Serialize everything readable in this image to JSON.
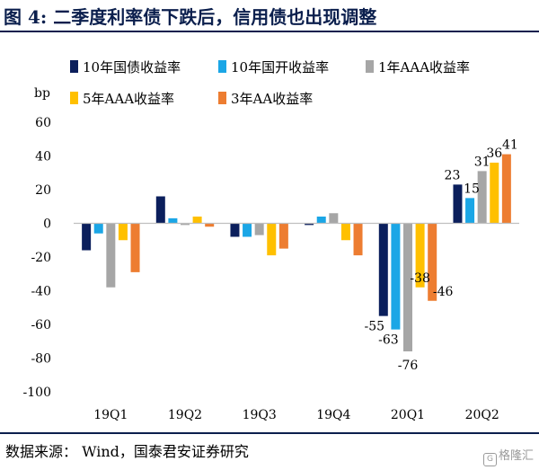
{
  "header": {
    "title": "图 4:  二季度利率债下跌后，信用债也出现调整"
  },
  "footer": {
    "source": "数据来源：  Wind，国泰君安证券研究",
    "watermark": "格隆汇"
  },
  "chart_data": {
    "type": "bar",
    "ylabel": "bp",
    "ylim": [
      -100,
      60
    ],
    "yticks": [
      -100,
      -80,
      -60,
      -40,
      -20,
      0,
      20,
      40,
      60
    ],
    "categories": [
      "19Q1",
      "19Q2",
      "19Q3",
      "19Q4",
      "20Q1",
      "20Q2"
    ],
    "legend_position": "top",
    "grid": false,
    "series": [
      {
        "name": "10年国债收益率",
        "color": "#0b1f5c",
        "values": [
          -16,
          16,
          -8,
          -1,
          -55,
          23
        ]
      },
      {
        "name": "10年国开收益率",
        "color": "#1ba6e6",
        "values": [
          -6,
          3,
          -8,
          4,
          -63,
          15
        ]
      },
      {
        "name": "1年AAA收益率",
        "color": "#a6a6a6",
        "values": [
          -38,
          -1,
          -7,
          6,
          -76,
          31
        ]
      },
      {
        "name": "5年AAA收益率",
        "color": "#ffc000",
        "values": [
          -10,
          4,
          -19,
          -10,
          -38,
          36
        ]
      },
      {
        "name": "3年AA收益率",
        "color": "#ed7d31",
        "values": [
          -29,
          -2,
          -15,
          -19,
          -46,
          41
        ]
      }
    ],
    "data_labels": [
      {
        "category": "20Q1",
        "series": 0,
        "text": "-55"
      },
      {
        "category": "20Q1",
        "series": 1,
        "text": "-63"
      },
      {
        "category": "20Q1",
        "series": 2,
        "text": "-76"
      },
      {
        "category": "20Q1",
        "series": 3,
        "text": "-38"
      },
      {
        "category": "20Q1",
        "series": 4,
        "text": "-46"
      },
      {
        "category": "20Q2",
        "series": 0,
        "text": "23"
      },
      {
        "category": "20Q2",
        "series": 1,
        "text": "15"
      },
      {
        "category": "20Q2",
        "series": 2,
        "text": "31"
      },
      {
        "category": "20Q2",
        "series": 3,
        "text": "36"
      },
      {
        "category": "20Q2",
        "series": 4,
        "text": "41"
      }
    ]
  }
}
